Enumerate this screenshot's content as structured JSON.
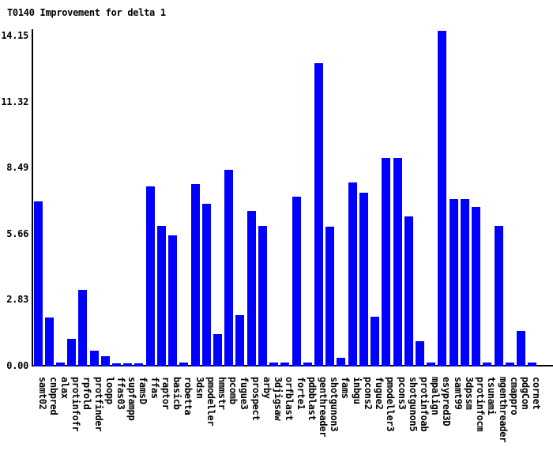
{
  "chart_data": {
    "type": "bar",
    "title": "T0140 Improvement for delta 1",
    "categories": [
      "samt02",
      "cnbpred",
      "alax",
      "protinfofr",
      "rpfold",
      "protfinder",
      "loopp",
      "ffas03",
      "supfampp",
      "famsD",
      "ffas",
      "raptor",
      "basicb",
      "robetta",
      "3dsn",
      "pmodeller",
      "hmmstr",
      "pcomb",
      "fugue3",
      "prospect",
      "arby",
      "3djigsaw",
      "orfblast",
      "forte1",
      "pdbblast",
      "genthreader",
      "shotgunon3",
      "fams",
      "inbgu",
      "pcons2",
      "fugue2",
      "pmodeller3",
      "pcons3",
      "shotgunon5",
      "protinfoab",
      "mpalign",
      "esypred3D",
      "samt99",
      "3dpssm",
      "protinfocm",
      "tsunami",
      "mgenthreader",
      "cmappro",
      "pdgCon",
      "cornet"
    ],
    "values": [
      7.05,
      2.05,
      0.15,
      1.15,
      3.25,
      0.65,
      0.4,
      0.1,
      0.1,
      0.1,
      7.7,
      6.0,
      5.6,
      0.15,
      7.8,
      6.95,
      1.35,
      8.4,
      2.15,
      6.65,
      6.0,
      0.15,
      0.15,
      7.25,
      0.15,
      12.95,
      5.95,
      0.35,
      7.85,
      7.4,
      2.1,
      8.9,
      8.9,
      6.4,
      1.05,
      0.15,
      14.35,
      7.15,
      7.15,
      6.8,
      0.15,
      6.0,
      0.15,
      1.5,
      0.15
    ],
    "xlabel": "",
    "ylabel": "",
    "y_tick_labels": [
      "0.00",
      "2.83",
      "5.66",
      "8.49",
      "11.32",
      "14.15"
    ],
    "y_tick_values": [
      0,
      2.83,
      5.66,
      8.49,
      11.32,
      14.15
    ],
    "ylim": [
      0,
      14.15
    ],
    "grid": false,
    "legend_position": "none",
    "bar_color": "#0000ff",
    "axis_color": "#000000",
    "background_color": "#ffffff",
    "text_color": "#000000"
  }
}
